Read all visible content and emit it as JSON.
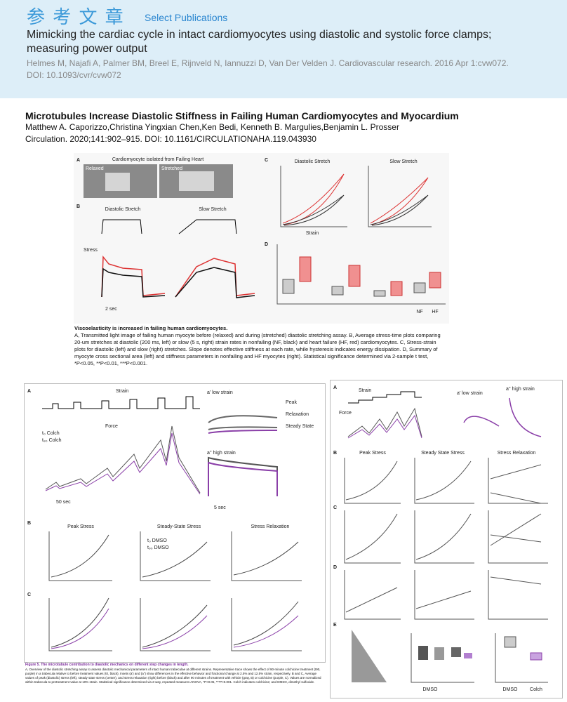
{
  "header": {
    "title": "参 考 文 章",
    "subtitle": "Select Publications"
  },
  "publications": [
    {
      "title": "Mimicking the cardiac cycle in intact cardiomyocytes using diastolic and systolic force clamps; measuring power output",
      "citation": "Helmes M, Najafi A, Palmer BM, Breel E, Rijnveld N, Iannuzzi D, Van Der Velden J. Cardiovascular research. 2016 Apr 1:cvw072. DOI: 10.1093/cvr/cvw072"
    },
    {
      "title": "Microtubules Increase Diastolic Stiffness in Failing Human Cardiomyocytes and Myocardium",
      "authors": "Matthew A. Caporizzo,Christina Yingxian Chen,Ken Bedi, Kenneth B. Margulies,Benjamin L. Prosser",
      "citation": "Circulation. 2020;141:902–915. DOI: 10.1161/CIRCULATIONAHA.119.043930"
    }
  ],
  "figure1": {
    "labels": [
      "A",
      "Cardiomyocyte isolated from Failing Heart",
      "Relaxed",
      "Stretched",
      "B",
      "Diastolic Stretch",
      "Slow Stretch",
      "Stress",
      "C",
      "Diastolic Stretch",
      "Slow Stretch",
      "D",
      "2 sec",
      "NF",
      "HF",
      "Strain"
    ],
    "caption_title": "Viscoelasticity is increased in failing human cardiomyocytes.",
    "caption": "A, Transmitted light image of failing human myocyte before (relaxed) and during (stretched) diastolic stretching assay. B, Average stress-time plots comparing 20-um stretches at diastolic (200 ms, left) or slow (5 s, right) strain rates in nonfailing (NF, black) and heart failure (HF, red) cardiomyocytes. C, Stress-strain plots for diastolic (left) and slow (right) stretches. Slope denotes effective stiffness at each rate, while hysteresis indicates energy dissipation. D, Summary of myocyte cross sectional area (left) and stiffness parameters in nonfailing and HF myocytes (right). Statistical significance determined via 2-sample t test, *P<0.05, **P<0.01, ***P<0.001."
  },
  "figure2": {
    "labels": [
      "A",
      "Strain",
      "Force",
      "a' low strain",
      "Peak",
      "Relaxation",
      "Steady State",
      "a'' high strain",
      "50 sec",
      "5 sec",
      "B",
      "Peak Stress",
      "Steady-State Stress",
      "Stress Relaxation",
      "C",
      "t₀ Colch",
      "t₉₀ Colch",
      "t₀ DMSO",
      "t₉₀ DMSO"
    ],
    "caption_title": "Figure 5. The microtubule contribution to diastolic mechanics on different step changes in length.",
    "caption": "A, Overview of the diastolic stretching assay to assess diastolic mechanical parameters of intact human trabeculae at different strains. Representative trace shows the effect of 90-minute colchicine treatment (t90, purple) in a trabecula relative to before treatment values (t0, black). Insets (a') and (a'') show differences in the effective behavior and fractional change at 2.5% and 12.5% strain, respectively. B and C, Average values of peak (diastolic) stress (left), steady state stress (center), and stress relaxation (right) before (black) and after 90 minutes of treatment with vehicle (gray, B) or colchicine (purple, C). Values are normalized within trabecula to pretreatment value at 10% strain. Statistical significance determined via 2-way, repeated-measures ANOVA, *P<0.05, ***P<0.001. Colch indicates colchicine; and DMSO, dimethyl sulfoxide."
  },
  "figure3": {
    "labels": [
      "A",
      "Strain",
      "Force",
      "a' low strain",
      "a'' high strain",
      "B",
      "Peak Stress",
      "Steady State Stress",
      "Stress Relaxation",
      "C",
      "D",
      "E",
      "DMSO",
      "Colch"
    ]
  }
}
